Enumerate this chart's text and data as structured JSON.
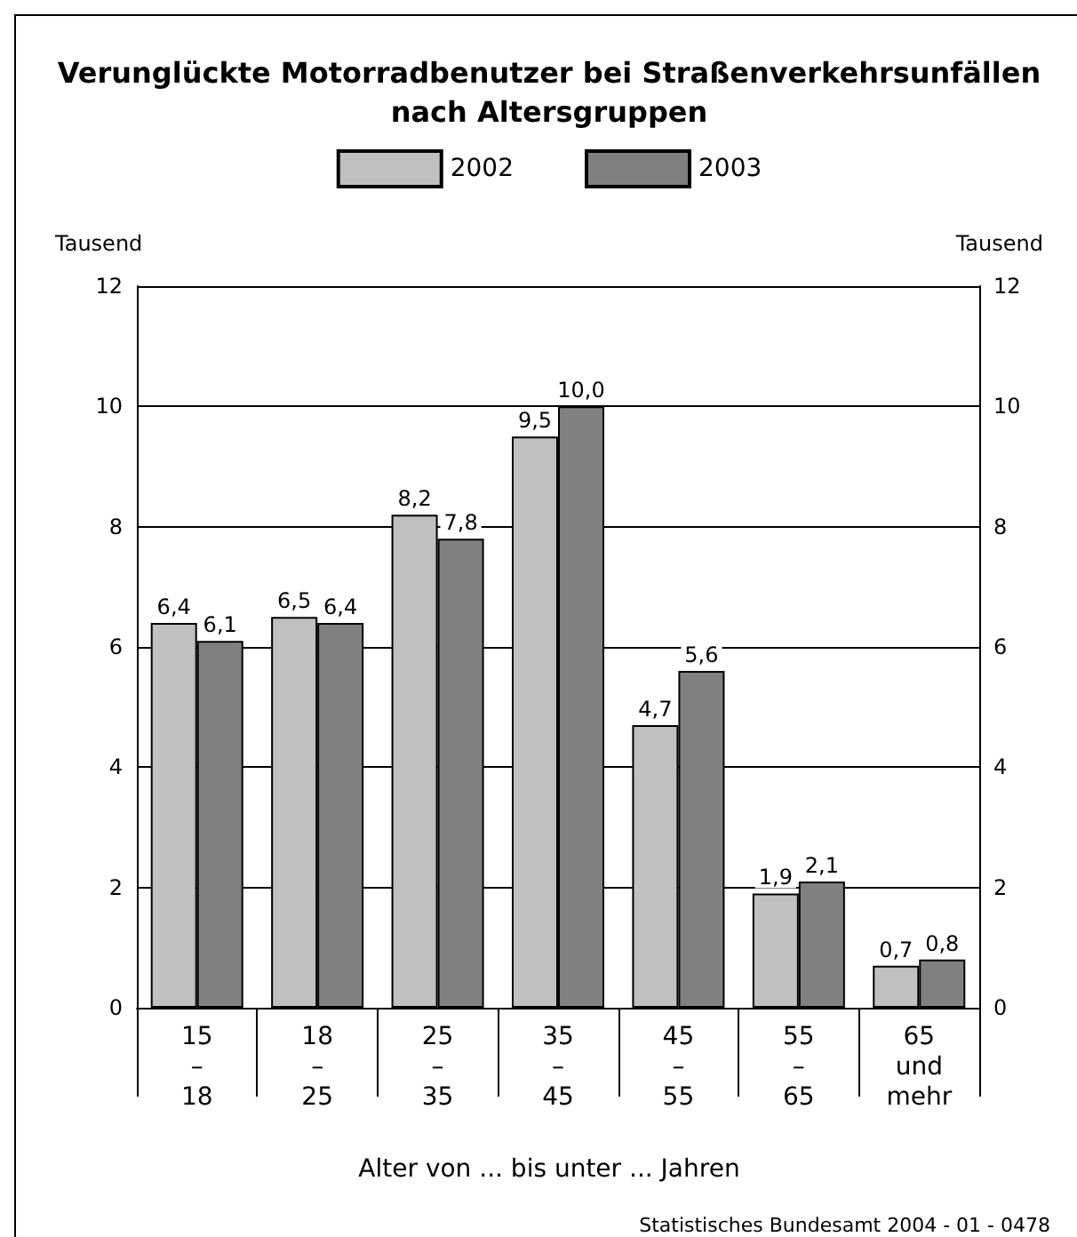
{
  "chart_data": {
    "type": "bar",
    "title": "Verunglückte Motorradbenutzer bei Straßenverkehrsunfällen\nnach Altersgruppen",
    "ylabel": "Tausend",
    "y2label": "Tausend",
    "xlabel": "Alter von ... bis unter ... Jahren",
    "categories": [
      "15\n–\n18",
      "18\n–\n25",
      "25\n–\n35",
      "35\n–\n45",
      "45\n–\n55",
      "55\n–\n65",
      "65\nund\nmehr"
    ],
    "series": [
      {
        "name": "2002",
        "color": "#c0c0c0",
        "values": [
          6.4,
          6.5,
          8.2,
          9.5,
          4.7,
          1.9,
          0.7
        ],
        "value_labels": [
          "6,4",
          "6,5",
          "8,2",
          "9,5",
          "4,7",
          "1,9",
          "0,7"
        ]
      },
      {
        "name": "2003",
        "color": "#808080",
        "values": [
          6.1,
          6.4,
          7.8,
          10.0,
          5.6,
          2.1,
          0.8
        ],
        "value_labels": [
          "6,1",
          "6,4",
          "7,8",
          "10,0",
          "5,6",
          "2,1",
          "0,8"
        ]
      }
    ],
    "ylim": [
      0,
      12
    ],
    "yticks": [
      0,
      2,
      4,
      6,
      8,
      10,
      12
    ],
    "y2lim": [
      0,
      12
    ],
    "y2ticks": [
      0,
      2,
      4,
      6,
      8,
      10,
      12
    ],
    "grid": "y",
    "legend": "top",
    "annotations": [
      "Statistisches Bundesamt 2004 - 01 - 0478"
    ]
  }
}
